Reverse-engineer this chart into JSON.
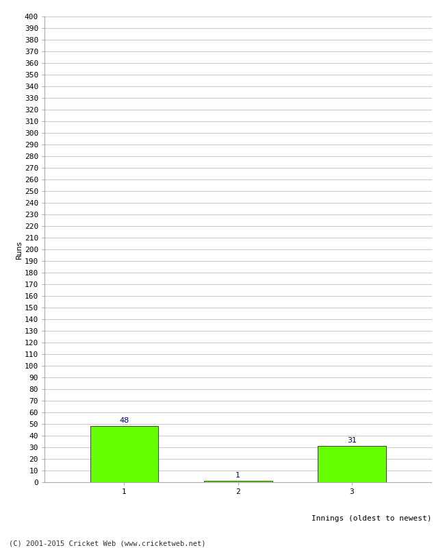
{
  "categories": [
    "1",
    "2",
    "3"
  ],
  "values": [
    48,
    1,
    31
  ],
  "bar_color": "#66ff00",
  "bar_edge_color": "#000000",
  "label_color": "#000080",
  "ylabel": "Runs",
  "xlabel": "Innings (oldest to newest)",
  "ylim": [
    0,
    400
  ],
  "ytick_step": 10,
  "background_color": "#ffffff",
  "grid_color": "#cccccc",
  "footer": "(C) 2001-2015 Cricket Web (www.cricketweb.net)"
}
